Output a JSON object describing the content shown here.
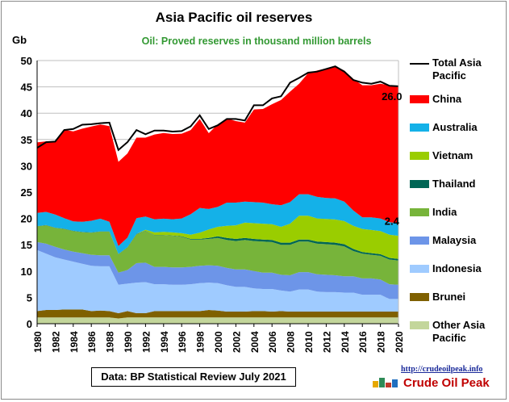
{
  "chart_data": {
    "type": "area",
    "stacked": true,
    "title": "Asia Pacific oil reserves",
    "subtitle": "Oil: Proved reserves in thousand million barrels",
    "ylabel": "Gb",
    "ylim": [
      0,
      50
    ],
    "yticks": [
      0,
      5,
      10,
      15,
      20,
      25,
      30,
      35,
      40,
      45,
      50
    ],
    "x": [
      1980,
      1981,
      1982,
      1983,
      1984,
      1985,
      1986,
      1987,
      1988,
      1989,
      1990,
      1991,
      1992,
      1993,
      1994,
      1995,
      1996,
      1997,
      1998,
      1999,
      2000,
      2001,
      2002,
      2003,
      2004,
      2005,
      2006,
      2007,
      2008,
      2009,
      2010,
      2011,
      2012,
      2013,
      2014,
      2015,
      2016,
      2017,
      2018,
      2019,
      2020
    ],
    "xticks": [
      "1980",
      "1982",
      "1984",
      "1986",
      "1988",
      "1990",
      "1992",
      "1994",
      "1996",
      "1998",
      "2000",
      "2002",
      "2004",
      "2006",
      "2008",
      "2010",
      "2012",
      "2014",
      "2016",
      "2018",
      "2020"
    ],
    "grid": true,
    "legend_position": "right",
    "series": [
      {
        "name": "Other Asia Pacific",
        "color": "#c3d69b",
        "values": [
          1.2,
          1.2,
          1.2,
          1.2,
          1.2,
          1.2,
          1.2,
          1.2,
          1.2,
          1.0,
          1.2,
          1.2,
          1.2,
          1.2,
          1.2,
          1.2,
          1.2,
          1.2,
          1.2,
          1.2,
          1.2,
          1.2,
          1.2,
          1.2,
          1.2,
          1.2,
          1.2,
          1.2,
          1.2,
          1.2,
          1.2,
          1.2,
          1.2,
          1.2,
          1.2,
          1.2,
          1.2,
          1.2,
          1.2,
          1.2,
          1.2
        ]
      },
      {
        "name": "Brunei",
        "color": "#7f6000",
        "values": [
          1.2,
          1.4,
          1.4,
          1.5,
          1.5,
          1.5,
          1.2,
          1.3,
          1.2,
          1.0,
          1.2,
          0.8,
          0.8,
          1.2,
          1.2,
          1.2,
          1.2,
          1.2,
          1.2,
          1.4,
          1.3,
          1.1,
          1.1,
          1.1,
          1.2,
          1.2,
          1.1,
          1.2,
          1.1,
          1.1,
          1.1,
          1.1,
          1.1,
          1.1,
          1.1,
          1.1,
          1.1,
          1.1,
          1.1,
          1.1,
          1.1
        ]
      },
      {
        "name": "Indonesia",
        "color": "#9fcbff",
        "values": [
          11.6,
          10.7,
          10.0,
          9.5,
          9.1,
          8.7,
          8.6,
          8.4,
          8.5,
          5.4,
          5.2,
          5.8,
          5.9,
          5.1,
          5.1,
          5.0,
          5.0,
          5.1,
          5.3,
          5.2,
          5.2,
          5.0,
          4.7,
          4.7,
          4.3,
          4.2,
          4.3,
          3.9,
          3.8,
          4.2,
          4.2,
          3.8,
          3.7,
          3.7,
          3.6,
          3.6,
          3.2,
          3.2,
          3.2,
          2.4,
          2.4
        ]
      },
      {
        "name": "Malaysia",
        "color": "#6d95e8",
        "values": [
          1.5,
          1.9,
          2.0,
          1.9,
          1.9,
          2.0,
          2.1,
          2.1,
          2.1,
          2.3,
          2.6,
          3.7,
          3.7,
          3.3,
          3.3,
          3.3,
          3.3,
          3.3,
          3.3,
          3.3,
          3.3,
          3.3,
          3.3,
          3.3,
          3.3,
          3.1,
          3.1,
          3.0,
          3.1,
          3.3,
          3.3,
          3.3,
          3.3,
          3.2,
          3.1,
          3.1,
          3.1,
          3.1,
          2.9,
          2.8,
          2.7
        ]
      },
      {
        "name": "India",
        "color": "#77b43a",
        "values": [
          3.0,
          3.5,
          3.6,
          3.9,
          3.9,
          4.0,
          4.2,
          4.5,
          4.5,
          3.5,
          4.3,
          5.5,
          6.0,
          6.0,
          6.0,
          6.0,
          5.8,
          5.2,
          5.0,
          5.0,
          5.3,
          5.3,
          5.4,
          5.6,
          5.7,
          5.9,
          5.8,
          5.7,
          5.8,
          5.8,
          5.8,
          5.8,
          5.8,
          5.8,
          5.7,
          4.8,
          4.7,
          4.5,
          4.5,
          4.7,
          4.6
        ]
      },
      {
        "name": "Thailand",
        "color": "#006655",
        "values": [
          0.05,
          0.05,
          0.05,
          0.05,
          0.05,
          0.05,
          0.05,
          0.05,
          0.05,
          0.05,
          0.05,
          0.05,
          0.05,
          0.05,
          0.05,
          0.05,
          0.1,
          0.1,
          0.1,
          0.2,
          0.3,
          0.4,
          0.4,
          0.4,
          0.4,
          0.4,
          0.4,
          0.4,
          0.4,
          0.4,
          0.4,
          0.4,
          0.4,
          0.4,
          0.4,
          0.4,
          0.3,
          0.3,
          0.3,
          0.3,
          0.3
        ]
      },
      {
        "name": "Vietnam",
        "color": "#9acd00",
        "values": [
          0,
          0,
          0,
          0,
          0,
          0,
          0,
          0,
          0,
          0,
          0,
          0,
          0.2,
          0.5,
          0.6,
          0.6,
          0.6,
          0.8,
          1.2,
          1.6,
          1.8,
          2.3,
          2.6,
          2.9,
          3.0,
          3.0,
          3.0,
          3.0,
          3.6,
          4.5,
          4.5,
          4.4,
          4.4,
          4.4,
          4.4,
          4.4,
          4.4,
          4.4,
          4.4,
          4.4,
          4.4
        ]
      },
      {
        "name": "Australia",
        "color": "#14b1e8",
        "values": [
          2.5,
          2.5,
          2.5,
          2.0,
          1.8,
          1.9,
          2.2,
          2.4,
          1.8,
          1.5,
          1.8,
          3.0,
          2.5,
          2.5,
          2.5,
          2.5,
          2.8,
          3.9,
          4.7,
          3.9,
          3.8,
          4.4,
          4.3,
          4.0,
          4.0,
          4.0,
          3.8,
          4.1,
          4.1,
          4.1,
          4.1,
          4.1,
          4.0,
          4.0,
          3.7,
          2.9,
          2.2,
          2.4,
          2.4,
          2.4,
          2.4
        ]
      },
      {
        "name": "China",
        "color": "#ff0000",
        "values": [
          13.4,
          13.4,
          13.8,
          16.8,
          17.1,
          17.7,
          17.9,
          17.9,
          18.2,
          16.0,
          16.0,
          15.3,
          15.0,
          16.1,
          16.3,
          16.2,
          16.1,
          16.0,
          16.9,
          14.4,
          15.7,
          16.0,
          15.5,
          15.0,
          17.6,
          17.8,
          19.0,
          20.0,
          21.0,
          21.0,
          23.0,
          24.0,
          24.6,
          25.1,
          24.9,
          25.0,
          25.1,
          25.1,
          25.6,
          26.0,
          26.0
        ]
      }
    ],
    "total": {
      "name": "Total Asia Pacific",
      "values": [
        33.4,
        34.5,
        34.6,
        36.8,
        37.0,
        37.8,
        37.9,
        38.1,
        38.2,
        33.0,
        34.5,
        36.8,
        36.0,
        36.7,
        36.7,
        36.5,
        36.6,
        37.5,
        39.6,
        37.0,
        37.7,
        38.9,
        38.9,
        38.6,
        41.5,
        41.5,
        42.8,
        43.2,
        45.8,
        46.7,
        47.7,
        47.9,
        48.4,
        48.9,
        47.9,
        46.3,
        45.8,
        45.6,
        46.0,
        45.2,
        45.1
      ]
    },
    "annotations": [
      {
        "text": "26.0",
        "at_year": 2019,
        "at_value": 42.5
      },
      {
        "text": "2.4",
        "at_year": 2019,
        "at_value": 18.8
      }
    ],
    "source_note": "Data: BP Statistical Review July 2021",
    "logo": {
      "url": "http://crudeoilpeak.info",
      "name": "Crude Oil Peak"
    }
  }
}
